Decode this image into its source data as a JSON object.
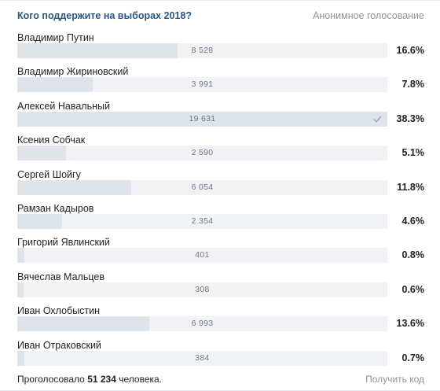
{
  "header": {
    "title": "Кого поддержите на выборах 2018?",
    "anon_label": "Анонимное голосование"
  },
  "options": [
    {
      "name": "Владимир Путин",
      "votes": "8 528",
      "percent": "16.6%",
      "fraction": 0.434,
      "voted": false
    },
    {
      "name": "Владимир Жириновский",
      "votes": "3 991",
      "percent": "7.8%",
      "fraction": 0.203,
      "voted": false
    },
    {
      "name": "Алексей Навальный",
      "votes": "19 631",
      "percent": "38.3%",
      "fraction": 1.0,
      "voted": true
    },
    {
      "name": "Ксения Собчак",
      "votes": "2 590",
      "percent": "5.1%",
      "fraction": 0.132,
      "voted": false
    },
    {
      "name": "Сергей Шойгу",
      "votes": "6 054",
      "percent": "11.8%",
      "fraction": 0.308,
      "voted": false
    },
    {
      "name": "Рамзан Кадыров",
      "votes": "2 354",
      "percent": "4.6%",
      "fraction": 0.12,
      "voted": false
    },
    {
      "name": "Григорий Явлинский",
      "votes": "401",
      "percent": "0.8%",
      "fraction": 0.02,
      "voted": false
    },
    {
      "name": "Вячеслав Мальцев",
      "votes": "308",
      "percent": "0.6%",
      "fraction": 0.016,
      "voted": false
    },
    {
      "name": "Иван Охлобыстин",
      "votes": "6 993",
      "percent": "13.6%",
      "fraction": 0.356,
      "voted": false
    },
    {
      "name": "Иван Отраковский",
      "votes": "384",
      "percent": "0.7%",
      "fraction": 0.02,
      "voted": false
    }
  ],
  "footer": {
    "voted_prefix": "Проголосовало",
    "voted_count": "51 234",
    "voted_suffix": "человека.",
    "get_code": "Получить код"
  }
}
